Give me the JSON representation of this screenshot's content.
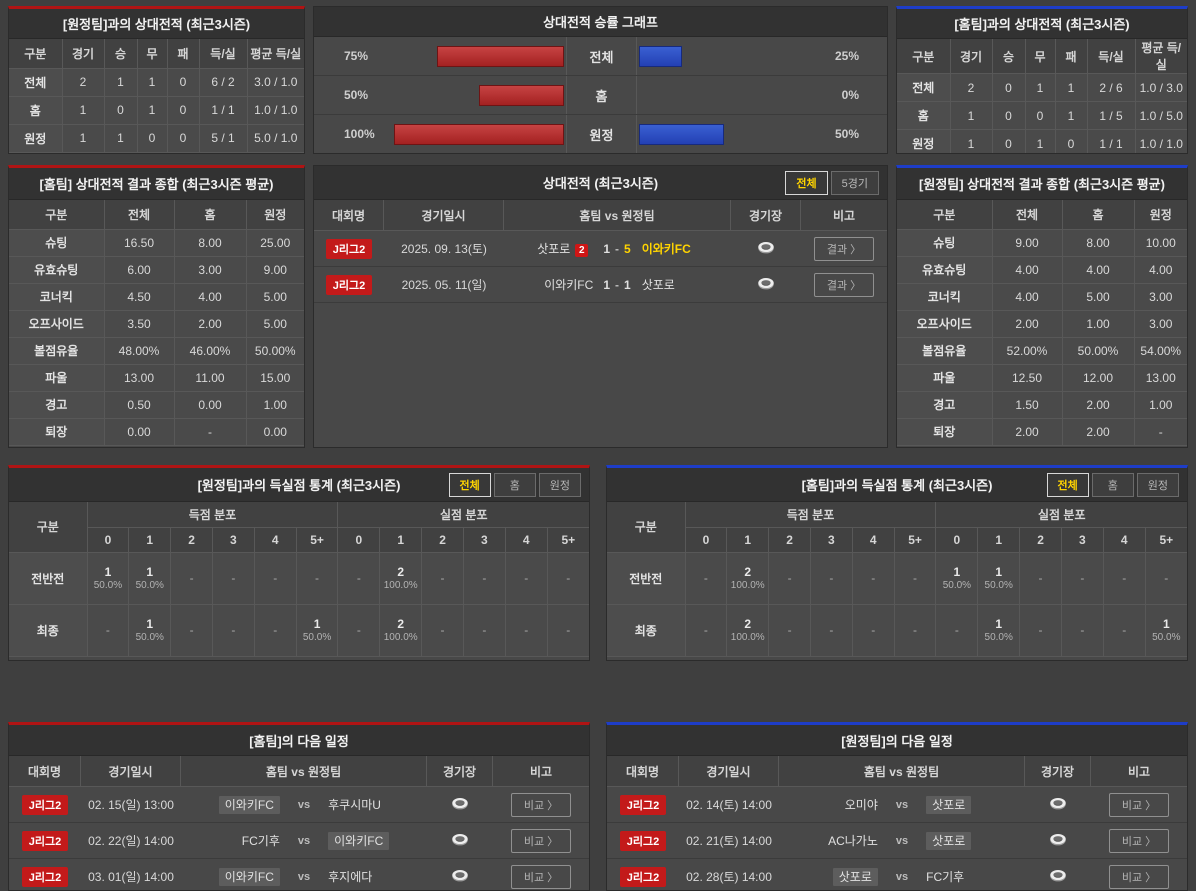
{
  "accent": {
    "red": "#b01414",
    "blue": "#1e3dc8",
    "yellow": "#ffd400",
    "bar_red": "#b03030",
    "bar_blue": "#2f50c8"
  },
  "chart_data": {
    "type": "bar",
    "title": "상대전적 승률 그래프",
    "categories": [
      "전체",
      "홈",
      "원정"
    ],
    "series": [
      {
        "name": "홈팀 승률(red/left)",
        "values": [
          75,
          50,
          100
        ]
      },
      {
        "name": "원정팀 승률(blue/right)",
        "values": [
          25,
          0,
          50
        ]
      }
    ],
    "unit": "%",
    "layout": "diverging-horizontal, bars grow outward from center labels",
    "xlim": [
      0,
      100
    ],
    "grid": false,
    "legend": "none"
  },
  "h2h_away": {
    "title": "[원정팀]과의 상대전적 (최근3시즌)",
    "headers": [
      "구분",
      "경기",
      "승",
      "무",
      "패",
      "득/실",
      "평균 득/실"
    ],
    "rows": [
      [
        "전체",
        "2",
        "1",
        "1",
        "0",
        "6 / 2",
        "3.0 / 1.0"
      ],
      [
        "홈",
        "1",
        "0",
        "1",
        "0",
        "1 / 1",
        "1.0 / 1.0"
      ],
      [
        "원정",
        "1",
        "1",
        "0",
        "0",
        "5 / 1",
        "5.0 / 1.0"
      ]
    ]
  },
  "h2h_home": {
    "title": "[홈팀]과의 상대전적 (최근3시즌)",
    "headers": [
      "구분",
      "경기",
      "승",
      "무",
      "패",
      "득/실",
      "평균 득/실"
    ],
    "rows": [
      [
        "전체",
        "2",
        "0",
        "1",
        "1",
        "2 / 6",
        "1.0 / 3.0"
      ],
      [
        "홈",
        "1",
        "0",
        "0",
        "1",
        "1 / 5",
        "1.0 / 5.0"
      ],
      [
        "원정",
        "1",
        "0",
        "1",
        "0",
        "1 / 1",
        "1.0 / 1.0"
      ]
    ]
  },
  "win_chart": {
    "title": "상대전적 승률 그래프",
    "rows": [
      {
        "left_label": "75%",
        "left_pct": 75,
        "category": "전체",
        "right_pct": 25,
        "right_label": "25%"
      },
      {
        "left_label": "50%",
        "left_pct": 50,
        "category": "홈",
        "right_pct": 0,
        "right_label": "0%"
      },
      {
        "left_label": "100%",
        "left_pct": 100,
        "category": "원정",
        "right_pct": 50,
        "right_label": "50%"
      }
    ]
  },
  "summary_home": {
    "title": "[홈팀] 상대전적 결과 종합 (최근3시즌 평균)",
    "headers": [
      "구분",
      "전체",
      "홈",
      "원정"
    ],
    "rows": [
      [
        "슈팅",
        "16.50",
        "8.00",
        "25.00"
      ],
      [
        "유효슈팅",
        "6.00",
        "3.00",
        "9.00"
      ],
      [
        "코너킥",
        "4.50",
        "4.00",
        "5.00"
      ],
      [
        "오프사이드",
        "3.50",
        "2.00",
        "5.00"
      ],
      [
        "볼점유율",
        "48.00%",
        "46.00%",
        "50.00%"
      ],
      [
        "파울",
        "13.00",
        "11.00",
        "15.00"
      ],
      [
        "경고",
        "0.50",
        "0.00",
        "1.00"
      ],
      [
        "퇴장",
        "0.00",
        "-",
        "0.00"
      ]
    ]
  },
  "summary_away": {
    "title": "[원정팀] 상대전적 결과 종합 (최근3시즌 평균)",
    "headers": [
      "구분",
      "전체",
      "홈",
      "원정"
    ],
    "rows": [
      [
        "슈팅",
        "9.00",
        "8.00",
        "10.00"
      ],
      [
        "유효슈팅",
        "4.00",
        "4.00",
        "4.00"
      ],
      [
        "코너킥",
        "4.00",
        "5.00",
        "3.00"
      ],
      [
        "오프사이드",
        "2.00",
        "1.00",
        "3.00"
      ],
      [
        "볼점유율",
        "52.00%",
        "50.00%",
        "54.00%"
      ],
      [
        "파울",
        "12.50",
        "12.00",
        "13.00"
      ],
      [
        "경고",
        "1.50",
        "2.00",
        "1.00"
      ],
      [
        "퇴장",
        "2.00",
        "2.00",
        "-"
      ]
    ]
  },
  "matches": {
    "title": "상대전적 (최근3시즌)",
    "tabs": [
      {
        "label": "전체",
        "active": true
      },
      {
        "label": "5경기",
        "active": false
      }
    ],
    "headers": [
      "대회명",
      "경기일시",
      "홈팀  vs  원정팀",
      "경기장",
      "비고"
    ],
    "note_label": "결과 〉",
    "rows": [
      {
        "league": "J리그2",
        "date": "2025. 09. 13(토)",
        "home": "삿포로",
        "home_redcards": "2",
        "home_score": "1",
        "away_score": "5",
        "away": "이와키FC",
        "winner": "away"
      },
      {
        "league": "J리그2",
        "date": "2025. 05. 11(일)",
        "home": "이와키FC",
        "home_redcards": "",
        "home_score": "1",
        "away_score": "1",
        "away": "삿포로",
        "winner": "none"
      }
    ]
  },
  "dist_left": {
    "title": "[원정팀]과의 득실점 통계 (최근3시즌)",
    "tabs": [
      {
        "label": "전체",
        "active": true
      },
      {
        "label": "홈",
        "active": false
      },
      {
        "label": "원정",
        "active": false
      }
    ],
    "corner_header": "구분",
    "group_headers": [
      "득점 분포",
      "실점 분포"
    ],
    "bins": [
      "0",
      "1",
      "2",
      "3",
      "4",
      "5+"
    ],
    "rows": [
      {
        "label": "전반전",
        "scored": [
          [
            "1",
            "50.0%"
          ],
          [
            "1",
            "50.0%"
          ],
          "-",
          "-",
          "-",
          "-"
        ],
        "conceded": [
          "-",
          [
            "2",
            "100.0%"
          ],
          "-",
          "-",
          "-",
          "-"
        ]
      },
      {
        "label": "최종",
        "scored": [
          "-",
          [
            "1",
            "50.0%"
          ],
          "-",
          "-",
          "-",
          [
            "1",
            "50.0%"
          ]
        ],
        "conceded": [
          "-",
          [
            "2",
            "100.0%"
          ],
          "-",
          "-",
          "-",
          "-"
        ]
      }
    ]
  },
  "dist_right": {
    "title": "[홈팀]과의 득실점 통계 (최근3시즌)",
    "tabs": [
      {
        "label": "전체",
        "active": true
      },
      {
        "label": "홈",
        "active": false
      },
      {
        "label": "원정",
        "active": false
      }
    ],
    "corner_header": "구분",
    "group_headers": [
      "득점 분포",
      "실점 분포"
    ],
    "bins": [
      "0",
      "1",
      "2",
      "3",
      "4",
      "5+"
    ],
    "rows": [
      {
        "label": "전반전",
        "scored": [
          "-",
          [
            "2",
            "100.0%"
          ],
          "-",
          "-",
          "-",
          "-"
        ],
        "conceded": [
          [
            "1",
            "50.0%"
          ],
          [
            "1",
            "50.0%"
          ],
          "-",
          "-",
          "-",
          "-"
        ]
      },
      {
        "label": "최종",
        "scored": [
          "-",
          [
            "2",
            "100.0%"
          ],
          "-",
          "-",
          "-",
          "-"
        ],
        "conceded": [
          "-",
          [
            "1",
            "50.0%"
          ],
          "-",
          "-",
          "-",
          [
            "1",
            "50.0%"
          ]
        ]
      }
    ]
  },
  "schedule_home": {
    "title": "[홈팀]의 다음 일정",
    "headers": [
      "대회명",
      "경기일시",
      "홈팀  vs  원정팀",
      "경기장",
      "비고"
    ],
    "vs_label": "vs",
    "note_label": "비교 〉",
    "rows": [
      {
        "league": "J리그2",
        "date": "02. 15(일) 13:00",
        "home": "이와키FC",
        "away": "후쿠시마U",
        "highlight": "home"
      },
      {
        "league": "J리그2",
        "date": "02. 22(일) 14:00",
        "home": "FC기후",
        "away": "이와키FC",
        "highlight": "away"
      },
      {
        "league": "J리그2",
        "date": "03. 01(일) 14:00",
        "home": "이와키FC",
        "away": "후지에다",
        "highlight": "home"
      }
    ]
  },
  "schedule_away": {
    "title": "[원정팀]의 다음 일정",
    "headers": [
      "대회명",
      "경기일시",
      "홈팀  vs  원정팀",
      "경기장",
      "비고"
    ],
    "vs_label": "vs",
    "note_label": "비교 〉",
    "rows": [
      {
        "league": "J리그2",
        "date": "02. 14(토) 14:00",
        "home": "오미야",
        "away": "삿포로",
        "highlight": "away"
      },
      {
        "league": "J리그2",
        "date": "02. 21(토) 14:00",
        "home": "AC나가노",
        "away": "삿포로",
        "highlight": "away"
      },
      {
        "league": "J리그2",
        "date": "02. 28(토) 14:00",
        "home": "삿포로",
        "away": "FC기후",
        "highlight": "home"
      }
    ]
  }
}
